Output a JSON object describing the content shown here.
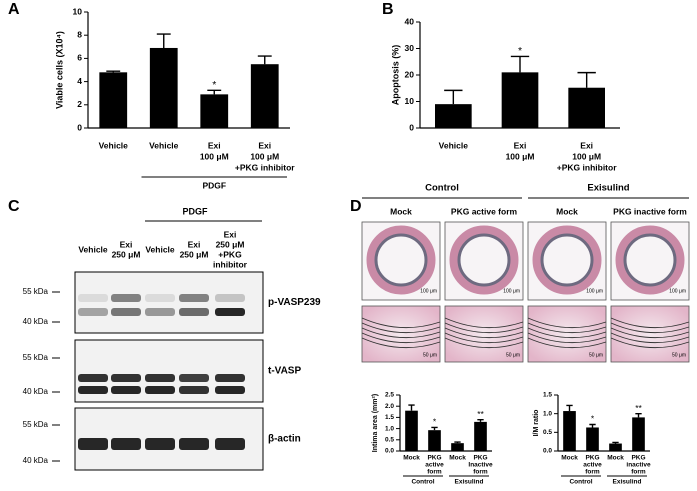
{
  "panel_labels": [
    "A",
    "B",
    "C",
    "D"
  ],
  "chart_data": [
    {
      "type": "bar",
      "y_label": "Viable cells (X10⁴)",
      "ylim": [
        0,
        10
      ],
      "yticks": [
        0,
        2,
        4,
        6,
        8,
        10
      ],
      "color": "#000000",
      "categories": [
        [
          "Vehicle"
        ],
        [
          "Vehicle"
        ],
        [
          "Exi",
          "100 μM"
        ],
        [
          "Exi",
          "100 μM",
          "+PKG inhibitor"
        ]
      ],
      "values": [
        4.8,
        6.9,
        2.9,
        5.5
      ],
      "errors": [
        0.1,
        1.2,
        0.35,
        0.7
      ],
      "annotations": [
        {
          "index": 2,
          "text": "*"
        }
      ],
      "groups": [
        {
          "label": "PDGF",
          "span": [
            1,
            3
          ]
        }
      ]
    },
    {
      "type": "bar",
      "y_label": "Apoptosis (%)",
      "ylim": [
        0,
        40
      ],
      "yticks": [
        0,
        10,
        20,
        30,
        40
      ],
      "color": "#000000",
      "categories": [
        [
          "Vehicle"
        ],
        [
          "Exi",
          "100 μM"
        ],
        [
          "Exi",
          "100 μM",
          "+PKG inhibitor"
        ]
      ],
      "values": [
        9,
        21,
        15.2
      ],
      "errors": [
        5.2,
        6,
        5.7
      ],
      "annotations": [
        {
          "index": 1,
          "text": "*"
        }
      ]
    },
    {
      "type": "bar",
      "y_label": "Intima area (mm²)",
      "ylim": [
        0,
        2.5
      ],
      "yticks": [
        {
          "value": 0,
          "label": "0.0"
        },
        {
          "value": 0.5,
          "label": "0.5"
        },
        {
          "value": 1,
          "label": "1.0"
        },
        {
          "value": 1.5,
          "label": "1.5"
        },
        {
          "value": 2,
          "label": "2.0"
        },
        {
          "value": 2.5,
          "label": "2.5"
        }
      ],
      "color": "#000000",
      "categories": [
        [
          "Mock"
        ],
        [
          "PKG",
          "active",
          "form"
        ],
        [
          "Mock"
        ],
        [
          "PKG",
          "Inactive",
          "form"
        ]
      ],
      "values": [
        1.8,
        0.93,
        0.35,
        1.3
      ],
      "errors": [
        0.25,
        0.12,
        0.05,
        0.1
      ],
      "annotations": [
        {
          "index": 1,
          "text": "*"
        },
        {
          "index": 3,
          "text": "**"
        }
      ],
      "groups": [
        {
          "label": "Control",
          "span": [
            0,
            1
          ]
        },
        {
          "label": "Exisulind",
          "span": [
            2,
            3
          ]
        }
      ]
    },
    {
      "type": "bar",
      "y_label": "I/M ratio",
      "ylim": [
        0,
        1.5
      ],
      "yticks": [
        {
          "value": 0,
          "label": "0.0"
        },
        {
          "value": 0.5,
          "label": "0.5"
        },
        {
          "value": 1,
          "label": "1.0"
        },
        {
          "value": 1.5,
          "label": "1.5"
        }
      ],
      "color": "#000000",
      "categories": [
        [
          "Mock"
        ],
        [
          "PKG",
          "active",
          "form"
        ],
        [
          "Mock"
        ],
        [
          "PKG",
          "inactive",
          "form"
        ]
      ],
      "values": [
        1.07,
        0.63,
        0.2,
        0.9
      ],
      "errors": [
        0.15,
        0.08,
        0.03,
        0.1
      ],
      "annotations": [
        {
          "index": 1,
          "text": "*"
        },
        {
          "index": 3,
          "text": "**"
        }
      ],
      "groups": [
        {
          "label": "Control",
          "span": [
            0,
            1
          ]
        },
        {
          "label": "Exisulind",
          "span": [
            2,
            3
          ]
        }
      ]
    }
  ],
  "blot": {
    "group": "PDGF",
    "conditions": [
      [
        "Vehicle"
      ],
      [
        "Exi",
        "250 μM"
      ],
      [
        "Vehicle"
      ],
      [
        "Exi",
        "250 μM"
      ],
      [
        "Exi",
        "250 μM",
        "+PKG",
        "inhibitor"
      ]
    ],
    "markers": [
      "p-VASP239",
      "t-VASP",
      "β-actin"
    ],
    "kda": [
      "55 kDa",
      "40 kDa"
    ]
  },
  "histology": {
    "groups": [
      "Control",
      "Exisulind"
    ],
    "columns": [
      "Mock",
      "PKG active form",
      "Mock",
      "PKG inactive form"
    ],
    "scale_bars": [
      "100 μm",
      "50 μm"
    ]
  }
}
